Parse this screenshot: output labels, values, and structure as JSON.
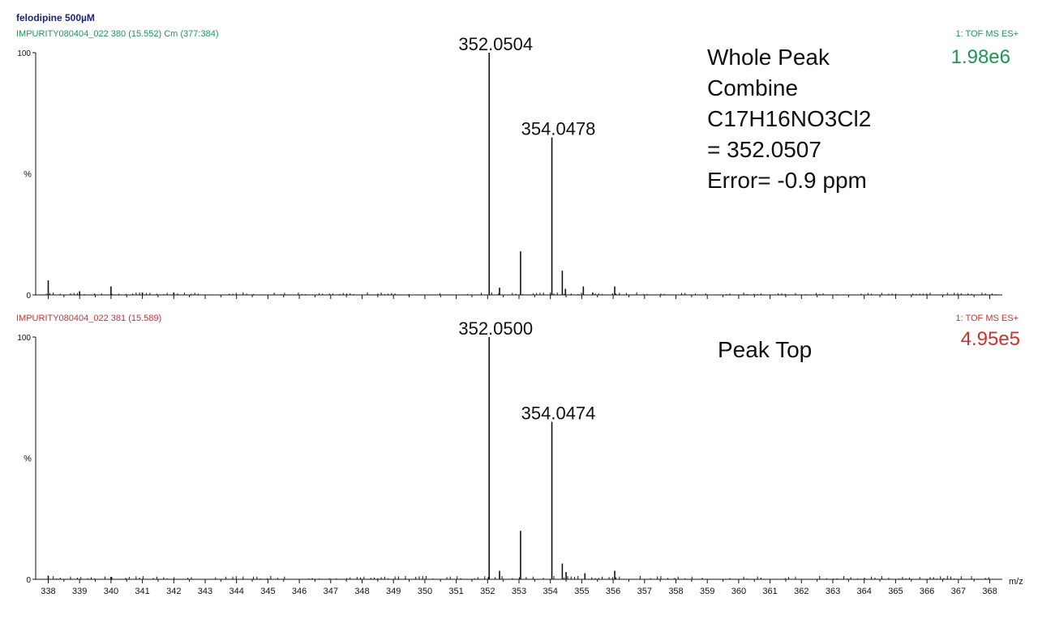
{
  "title": "felodipine 500µM",
  "colors": {
    "green": "#1a9850",
    "red": "#d32f2f",
    "axis": "#111111",
    "navy": "#1a237e"
  },
  "panels": {
    "top": {
      "header": "IMPURITY080404_022 380 (15.552) Cm (377:384)",
      "mode": "1: TOF MS ES+",
      "intensity": "1.98e6",
      "annotation": [
        "Whole Peak",
        "Combine",
        "C17H16NO3Cl2",
        "= 352.0507",
        "Error= -0.9 ppm"
      ]
    },
    "bottom": {
      "header": "IMPURITY080404_022 381 (15.589)",
      "mode": "1: TOF MS ES+",
      "intensity": "4.95e5",
      "annotation": [
        "Peak Top"
      ]
    }
  },
  "chart_data": [
    {
      "type": "bar",
      "title": "IMPURITY080404_022 380 (15.552) Cm (377:384)",
      "ylabel": "%",
      "ylim": [
        0,
        100
      ],
      "xlim": [
        337.6,
        368.4
      ],
      "y_ticks": [
        "100",
        "0"
      ],
      "x_tick_labels": [],
      "xlabel": "",
      "peaks": [
        {
          "mz": 352.0504,
          "intensity": 100,
          "label": "352.0504"
        },
        {
          "mz": 354.0478,
          "intensity": 65,
          "label": "354.0478"
        },
        {
          "mz": 353.05,
          "intensity": 18
        },
        {
          "mz": 354.38,
          "intensity": 10
        },
        {
          "mz": 338.0,
          "intensity": 6
        },
        {
          "mz": 340.0,
          "intensity": 3.5
        },
        {
          "mz": 355.05,
          "intensity": 3.5
        },
        {
          "mz": 356.05,
          "intensity": 3.5
        },
        {
          "mz": 352.38,
          "intensity": 3
        },
        {
          "mz": 354.48,
          "intensity": 2.5
        },
        {
          "mz": 339.0,
          "intensity": 1.5
        },
        {
          "mz": 341.0,
          "intensity": 1
        },
        {
          "mz": 342.0,
          "intensity": 1
        },
        {
          "mz": 355.35,
          "intensity": 1
        }
      ]
    },
    {
      "type": "bar",
      "title": "IMPURITY080404_022 381 (15.589)",
      "ylabel": "%",
      "ylim": [
        0,
        100
      ],
      "xlim": [
        337.6,
        368.4
      ],
      "y_ticks": [
        "100",
        "0"
      ],
      "xlabel": "m/z",
      "x_tick_labels": [
        "338",
        "339",
        "340",
        "341",
        "342",
        "343",
        "344",
        "345",
        "346",
        "347",
        "348",
        "349",
        "350",
        "351",
        "352",
        "353",
        "354",
        "355",
        "356",
        "357",
        "358",
        "359",
        "360",
        "361",
        "362",
        "363",
        "364",
        "365",
        "366",
        "367",
        "368"
      ],
      "peaks": [
        {
          "mz": 352.05,
          "intensity": 100,
          "label": "352.0500"
        },
        {
          "mz": 354.0474,
          "intensity": 65,
          "label": "354.0474"
        },
        {
          "mz": 353.05,
          "intensity": 20
        },
        {
          "mz": 354.38,
          "intensity": 6.5
        },
        {
          "mz": 352.38,
          "intensity": 3.5
        },
        {
          "mz": 356.05,
          "intensity": 3.5
        },
        {
          "mz": 355.1,
          "intensity": 2.5
        },
        {
          "mz": 354.5,
          "intensity": 3
        },
        {
          "mz": 338.0,
          "intensity": 1.5
        },
        {
          "mz": 340.0,
          "intensity": 1
        }
      ]
    }
  ]
}
